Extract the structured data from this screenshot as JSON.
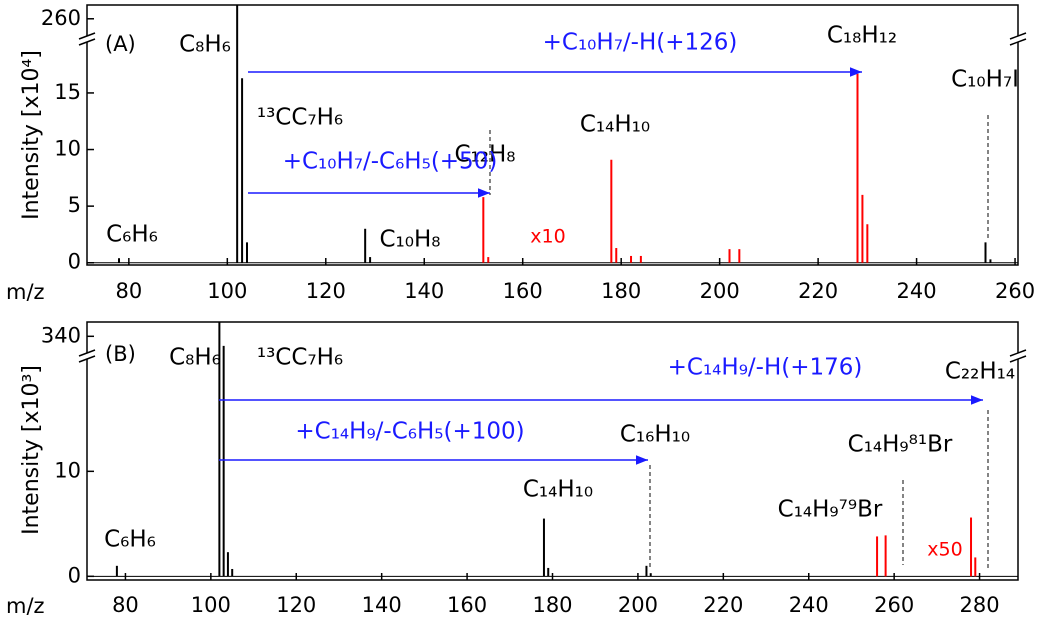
{
  "chart_data": [
    {
      "type": "stick",
      "panel": "(A)",
      "xlabel": "m/z",
      "ylabel": "Intensity [x10⁴]",
      "xlim": [
        71.5,
        260.6
      ],
      "xticks": [
        80,
        100,
        120,
        140,
        160,
        180,
        200,
        220,
        240,
        260
      ],
      "ylim": [
        -0.2,
        262
      ],
      "ybreak": [
        19.5,
        257.5
      ],
      "yticks": [
        0,
        5,
        10,
        15,
        260
      ],
      "series": [
        {
          "color": "#000000",
          "x": [
            78,
            102,
            103,
            104,
            128,
            129,
            254,
            255
          ],
          "values": [
            0.4,
            262,
            16.3,
            1.8,
            3.0,
            0.5,
            1.8,
            0.3
          ]
        },
        {
          "color": "#ff0000",
          "x": [
            152,
            153,
            178,
            179,
            182,
            184,
            202,
            204,
            228,
            229,
            230
          ],
          "values": [
            5.8,
            0.5,
            9.1,
            1.3,
            0.6,
            0.6,
            1.2,
            1.2,
            16.7,
            6.0,
            3.4
          ]
        }
      ],
      "scale_label": "x10",
      "annotations": [
        "C₈H₆",
        "¹³CC₇H₆",
        "C₁₂H₈",
        "C₁₄H₁₀",
        "C₁₈H₁₂",
        "C₁₀H₇I",
        "C₆H₆",
        "C₁₀H₈",
        "+C₁₀H₇/-H(+126)",
        "+C₁₀H₇/-C₆H₅(+50)"
      ]
    },
    {
      "type": "stick",
      "panel": "(B)",
      "xlabel": "m/z",
      "ylabel": "Intensity [x10³]",
      "xlim": [
        71,
        289
      ],
      "xticks": [
        80,
        100,
        120,
        140,
        160,
        180,
        200,
        220,
        240,
        260,
        280
      ],
      "ylim": [
        -0.35,
        343
      ],
      "ybreak": [
        20.7,
        336.5
      ],
      "yticks": [
        0,
        10,
        340
      ],
      "series": [
        {
          "color": "#000000",
          "x": [
            78,
            102,
            103,
            104,
            105,
            178,
            179,
            202,
            203
          ],
          "values": [
            1.0,
            343,
            338,
            2.3,
            0.7,
            5.5,
            0.8,
            1.0,
            0.3
          ]
        },
        {
          "color": "#ff0000",
          "x": [
            256,
            258,
            278,
            279
          ],
          "values": [
            3.8,
            3.9,
            5.6,
            1.8
          ]
        }
      ],
      "scale_label": "x50",
      "annotations": [
        "C₈H₆",
        "¹³CC₇H₆",
        "+C₁₄H₉/-H(+176)",
        "C₂₂H₁₄",
        "+C₁₄H₉/-C₆H₅(+100)",
        "C₁₆H₁₀",
        "C₁₄H₉⁸¹Br",
        "C₁₄H₁₀",
        "C₁₄H₉⁷⁹Br",
        "C₆H₆"
      ]
    }
  ]
}
